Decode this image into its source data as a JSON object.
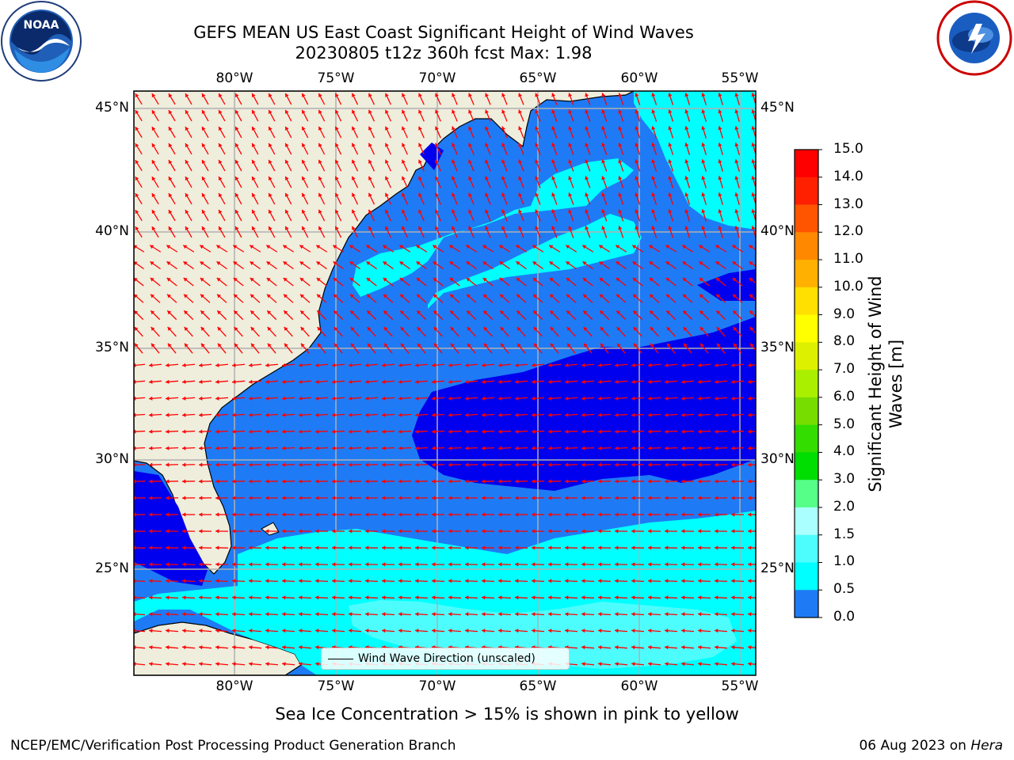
{
  "header": {
    "title_line1": "GEFS MEAN US East Coast Significant Height of Wind Waves",
    "title_line2": "20230805 t12z 360h fcst   Max: 1.98"
  },
  "logos": {
    "left": "noaa-logo",
    "right": "national-weather-service-logo"
  },
  "map": {
    "lon_labels": [
      "80°W",
      "75°W",
      "70°W",
      "65°W",
      "60°W",
      "55°W"
    ],
    "lat_labels": [
      "45°N",
      "40°N",
      "35°N",
      "30°N",
      "25°N"
    ],
    "legend_text": "Wind Wave Direction (unscaled)",
    "colors": {
      "land": "#efeddc",
      "band_0_0_5": "#0000ee",
      "band_0_5_1_0": "#1e7bf5",
      "band_1_0_1_5": "#00ffff",
      "band_1_5_2_0": "#4dfdfd",
      "arrow": "#ff0000",
      "grid": "#b0b0b0"
    }
  },
  "colorbar": {
    "label": "Significant Height of Wind Waves [m]",
    "ticks": [
      "15.0",
      "14.0",
      "13.0",
      "12.0",
      "11.0",
      "10.0",
      "9.0",
      "8.0",
      "7.0",
      "6.0",
      "5.0",
      "4.0",
      "3.0",
      "2.0",
      "1.5",
      "1.0",
      "0.5",
      "0.0"
    ],
    "colors": [
      "#ff0000",
      "#ff2000",
      "#ff5500",
      "#ff8800",
      "#ffb000",
      "#ffe000",
      "#ffff00",
      "#ddf000",
      "#aaee00",
      "#77dd00",
      "#33dd00",
      "#00dd00",
      "#55ff88",
      "#aaffff",
      "#4dfdfd",
      "#00ffff",
      "#1e7bf5",
      "#0000ee"
    ]
  },
  "subtitle": "Sea Ice Concentration > 15% is shown in pink to yellow",
  "footer": {
    "left": "NCEP/EMC/Verification Post Processing Product Generation Branch",
    "right_date": "06 Aug 2023 on ",
    "right_host": "Hera"
  }
}
